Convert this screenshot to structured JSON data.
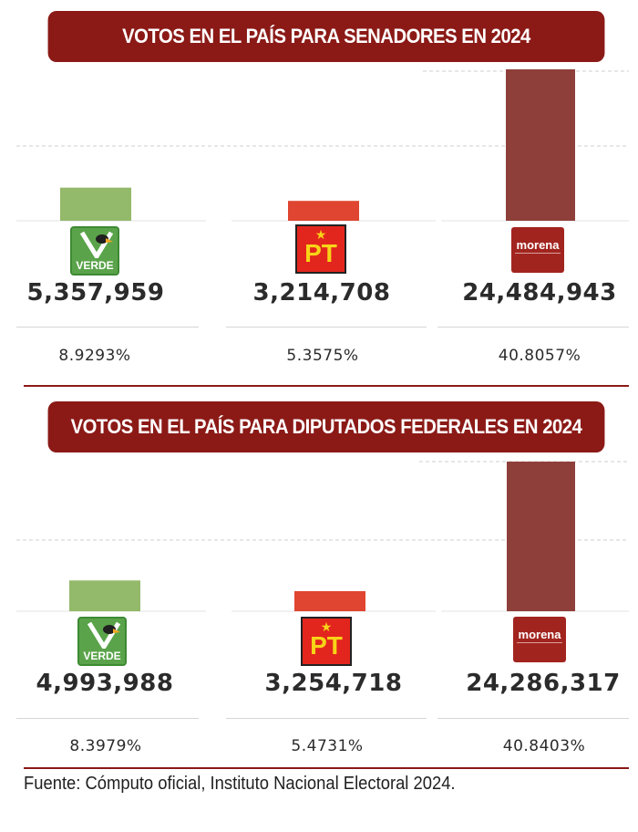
{
  "chart_data": [
    {
      "type": "bar",
      "title": "VOTOS EN EL PAÍS PARA SENADORES EN 2024",
      "categories": [
        "VERDE",
        "PT",
        "morena"
      ],
      "values": [
        5357959,
        3214708,
        24484943
      ],
      "value_labels": [
        "5,357,959",
        "3,214,708",
        "24,484,943"
      ],
      "percent_labels": [
        "8.9293%",
        "5.3575%",
        "40.8057%"
      ],
      "colors": [
        "#93b96a",
        "#df4530",
        "#8f3f3a"
      ],
      "grid": true
    },
    {
      "type": "bar",
      "title": "VOTOS EN EL PAÍS PARA DIPUTADOS FEDERALES EN 2024",
      "categories": [
        "VERDE",
        "PT",
        "morena"
      ],
      "values": [
        4993988,
        3254718,
        24286317
      ],
      "value_labels": [
        "4,993,988",
        "3,254,718",
        "24,286,317"
      ],
      "percent_labels": [
        "8.3979%",
        "5.4731%",
        "40.8403%"
      ],
      "colors": [
        "#93b96a",
        "#df4530",
        "#8f3f3a"
      ],
      "grid": true
    }
  ],
  "logos": {
    "verde": "VERDE",
    "pt": "PT",
    "morena": "morena"
  },
  "footer": "Fuente: Cómputo oficial, Instituto Nacional Electoral 2024."
}
